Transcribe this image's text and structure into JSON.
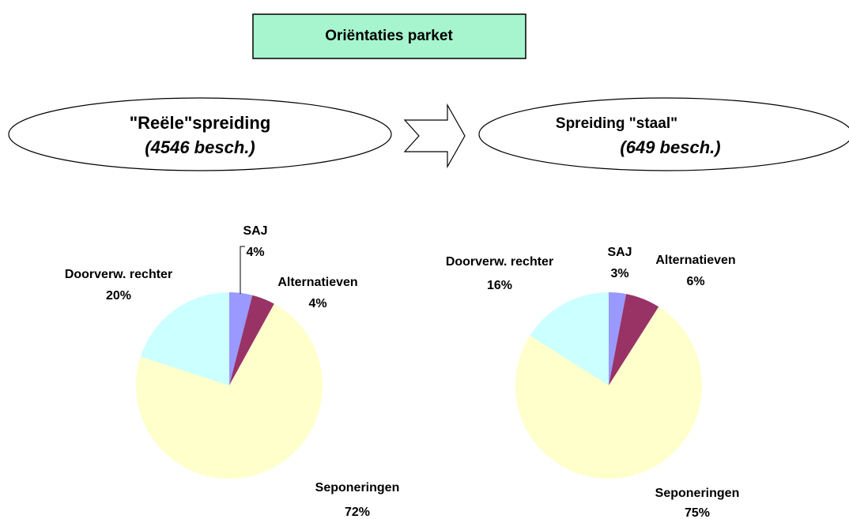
{
  "header": "Oriëntaties parket",
  "left_ellipse": {
    "title": "\"Reële\"spreiding",
    "subtitle": "(4546 besch.)"
  },
  "right_ellipse": {
    "title": "Spreiding \"staal\"",
    "subtitle": "(649 besch.)"
  },
  "chart_data": [
    {
      "type": "pie",
      "categories": [
        "SAJ",
        "Alternatieven",
        "Seponeringen",
        "Doorverw. rechter"
      ],
      "values": [
        4,
        4,
        72,
        20
      ],
      "value_labels": [
        "4%",
        "4%",
        "72%",
        "20%"
      ],
      "colors": [
        "#9999ff",
        "#993366",
        "#ffffcc",
        "#ccffff"
      ]
    },
    {
      "type": "pie",
      "categories": [
        "SAJ",
        "Alternatieven",
        "Seponeringen",
        "Doorverw. rechter"
      ],
      "values": [
        3,
        6,
        75,
        16
      ],
      "value_labels": [
        "3%",
        "6%",
        "75%",
        "16%"
      ],
      "colors": [
        "#9999ff",
        "#993366",
        "#ffffcc",
        "#ccffff"
      ]
    }
  ]
}
